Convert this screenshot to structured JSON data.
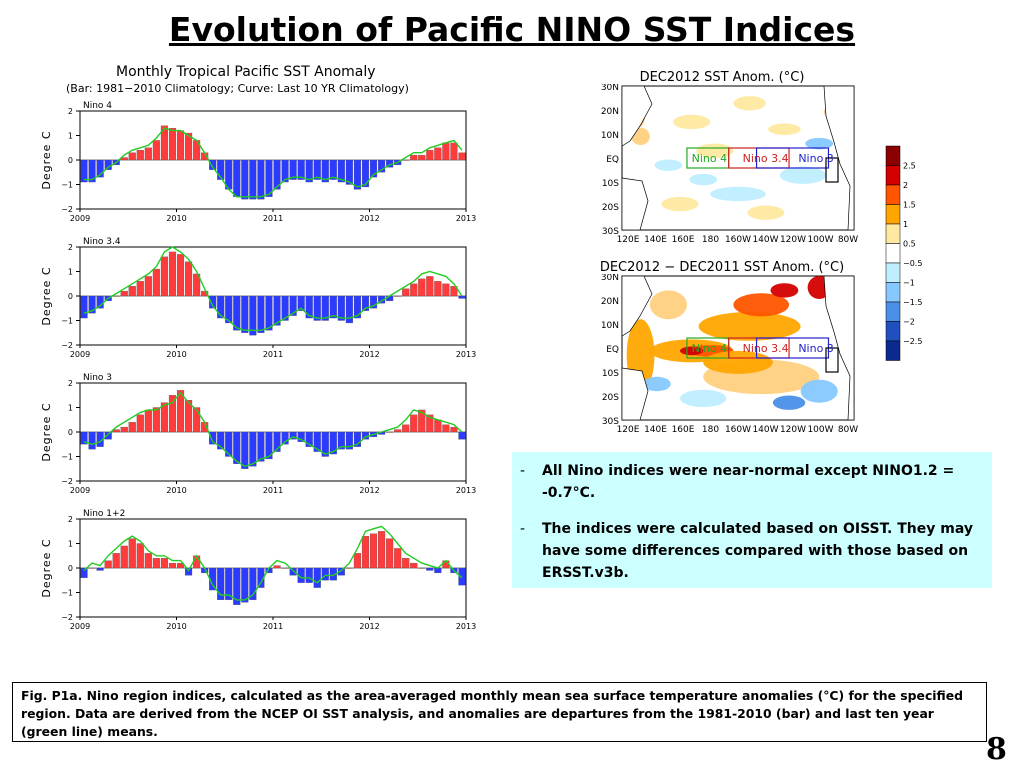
{
  "slide": {
    "title": "Evolution of Pacific NINO SST Indices",
    "page_number": "8",
    "caption": "Fig. P1a. Nino region indices, calculated as the area-averaged monthly mean sea surface temperature anomalies (°C) for the specified region. Data are derived from the NCEP OI SST analysis, and anomalies are departures from the 1981-2010 (bar) and last ten year (green line) means."
  },
  "bullets": [
    {
      "dash": "-",
      "text": "All Nino indices were near-normal except NINO1.2 = -0.7°C."
    },
    {
      "dash": "-",
      "text": "The indices were calculated based on OISST. They may have some differences compared with those based on ERSST.v3b."
    }
  ],
  "colors": {
    "positive_bar": "#ff3b3b",
    "negative_bar": "#2b3bff",
    "curve": "#22cc22"
  },
  "chart_data": [
    {
      "type": "bar",
      "title": "Monthly Tropical Pacific SST Anomaly",
      "subtitle": "(Bar: 1981−2010 Climatology; Curve: Last 10 YR Climatology)",
      "panel_label": "Nino 4",
      "ylabel": "Degree C",
      "ylim": [
        -2,
        2
      ],
      "yticks": [
        "2",
        "1",
        "0",
        "−1",
        "−2"
      ],
      "xticks": [
        "2009",
        "2010",
        "2011",
        "2012",
        "2013"
      ],
      "series": [
        {
          "values": [
            -0.9,
            -0.9,
            -0.7,
            -0.4,
            -0.2,
            0.1,
            0.3,
            0.4,
            0.5,
            0.8,
            1.4,
            1.3,
            1.2,
            1.1,
            0.8,
            0.3,
            -0.4,
            -0.8,
            -1.2,
            -1.5,
            -1.6,
            -1.6,
            -1.6,
            -1.5,
            -1.2,
            -0.9,
            -0.8,
            -0.8,
            -0.9,
            -0.8,
            -0.9,
            -0.8,
            -0.9,
            -1.0,
            -1.2,
            -1.1,
            -0.7,
            -0.5,
            -0.3,
            -0.2,
            0.0,
            0.2,
            0.2,
            0.4,
            0.5,
            0.7,
            0.7,
            0.3
          ]
        },
        {
          "values": [
            -0.8,
            -0.8,
            -0.6,
            -0.3,
            -0.1,
            0.2,
            0.4,
            0.5,
            0.6,
            0.9,
            1.3,
            1.2,
            1.2,
            1.0,
            0.8,
            0.3,
            -0.3,
            -0.7,
            -1.2,
            -1.5,
            -1.5,
            -1.5,
            -1.5,
            -1.4,
            -1.1,
            -0.8,
            -0.7,
            -0.7,
            -0.8,
            -0.7,
            -0.8,
            -0.7,
            -0.8,
            -0.9,
            -1.1,
            -1.0,
            -0.6,
            -0.4,
            -0.2,
            -0.1,
            0.1,
            0.3,
            0.3,
            0.5,
            0.6,
            0.7,
            0.8,
            0.4
          ]
        }
      ]
    },
    {
      "type": "bar",
      "panel_label": "Nino 3.4",
      "ylabel": "Degree C",
      "ylim": [
        -2,
        2
      ],
      "yticks": [
        "2",
        "1",
        "0",
        "−1",
        "−2"
      ],
      "xticks": [
        "2009",
        "2010",
        "2011",
        "2012",
        "2013"
      ],
      "series": [
        {
          "values": [
            -0.9,
            -0.7,
            -0.5,
            -0.2,
            0.0,
            0.2,
            0.4,
            0.6,
            0.8,
            1.1,
            1.6,
            1.8,
            1.7,
            1.4,
            0.9,
            0.2,
            -0.5,
            -0.9,
            -1.1,
            -1.4,
            -1.5,
            -1.6,
            -1.5,
            -1.4,
            -1.2,
            -1.0,
            -0.8,
            -0.6,
            -0.9,
            -1.0,
            -1.0,
            -0.9,
            -1.0,
            -1.1,
            -0.9,
            -0.6,
            -0.5,
            -0.3,
            -0.2,
            0.0,
            0.3,
            0.5,
            0.7,
            0.8,
            0.6,
            0.5,
            0.4,
            -0.1
          ]
        },
        {
          "values": [
            -0.7,
            -0.6,
            -0.4,
            -0.1,
            0.1,
            0.3,
            0.5,
            0.7,
            0.9,
            1.2,
            1.8,
            2.0,
            1.8,
            1.5,
            1.0,
            0.3,
            -0.4,
            -0.8,
            -1.0,
            -1.3,
            -1.4,
            -1.4,
            -1.4,
            -1.3,
            -1.1,
            -0.9,
            -0.7,
            -0.5,
            -0.8,
            -0.9,
            -0.9,
            -0.8,
            -0.9,
            -0.9,
            -0.8,
            -0.5,
            -0.4,
            -0.2,
            0.0,
            0.2,
            0.4,
            0.6,
            0.9,
            1.0,
            0.9,
            0.8,
            0.5,
            0.0
          ]
        }
      ]
    },
    {
      "type": "bar",
      "panel_label": "Nino 3",
      "ylabel": "Degree C",
      "ylim": [
        -2,
        2
      ],
      "yticks": [
        "2",
        "1",
        "0",
        "−1",
        "−2"
      ],
      "xticks": [
        "2009",
        "2010",
        "2011",
        "2012",
        "2013"
      ],
      "series": [
        {
          "values": [
            -0.5,
            -0.7,
            -0.6,
            -0.3,
            0.1,
            0.2,
            0.4,
            0.7,
            0.9,
            1.0,
            1.2,
            1.5,
            1.7,
            1.3,
            1.0,
            0.4,
            -0.5,
            -0.7,
            -1.0,
            -1.3,
            -1.5,
            -1.4,
            -1.2,
            -1.1,
            -0.8,
            -0.5,
            -0.3,
            -0.4,
            -0.6,
            -0.8,
            -1.0,
            -0.9,
            -0.7,
            -0.7,
            -0.6,
            -0.3,
            -0.2,
            -0.1,
            0.0,
            0.1,
            0.3,
            0.7,
            0.9,
            0.7,
            0.5,
            0.3,
            0.2,
            -0.3
          ]
        },
        {
          "values": [
            -0.4,
            -0.5,
            -0.4,
            -0.1,
            0.2,
            0.4,
            0.6,
            0.8,
            0.9,
            0.9,
            1.1,
            1.2,
            1.6,
            1.2,
            0.9,
            0.4,
            -0.4,
            -0.6,
            -0.9,
            -1.2,
            -1.4,
            -1.3,
            -1.1,
            -1.0,
            -0.7,
            -0.4,
            -0.2,
            -0.3,
            -0.5,
            -0.7,
            -0.9,
            -0.8,
            -0.6,
            -0.6,
            -0.5,
            -0.2,
            -0.1,
            0.0,
            0.1,
            0.2,
            0.5,
            0.9,
            0.8,
            0.6,
            0.5,
            0.4,
            0.3,
            0.0
          ]
        }
      ]
    },
    {
      "type": "bar",
      "panel_label": "Nino 1+2",
      "ylabel": "Degree C",
      "ylim": [
        -2,
        2
      ],
      "yticks": [
        "2",
        "1",
        "0",
        "−1",
        "−2"
      ],
      "xticks": [
        "2009",
        "2010",
        "2011",
        "2012",
        "2013"
      ],
      "series": [
        {
          "values": [
            -0.4,
            0.0,
            -0.1,
            0.3,
            0.6,
            0.9,
            1.2,
            1.0,
            0.6,
            0.4,
            0.4,
            0.2,
            0.2,
            -0.3,
            0.5,
            -0.2,
            -0.9,
            -1.3,
            -1.3,
            -1.5,
            -1.4,
            -1.3,
            -0.8,
            -0.2,
            0.1,
            0.0,
            -0.3,
            -0.6,
            -0.6,
            -0.8,
            -0.5,
            -0.5,
            -0.3,
            0.0,
            0.6,
            1.3,
            1.4,
            1.5,
            1.2,
            0.8,
            0.4,
            0.2,
            0.0,
            -0.1,
            -0.2,
            0.3,
            -0.2,
            -0.7
          ]
        },
        {
          "values": [
            -0.1,
            0.2,
            0.1,
            0.5,
            0.8,
            1.1,
            1.3,
            1.1,
            0.7,
            0.5,
            0.5,
            0.3,
            0.3,
            -0.1,
            0.5,
            0.0,
            -0.7,
            -1.1,
            -1.1,
            -1.3,
            -1.3,
            -1.1,
            -0.6,
            0.0,
            0.3,
            0.2,
            -0.1,
            -0.4,
            -0.4,
            -0.6,
            -0.3,
            -0.3,
            -0.1,
            0.2,
            0.8,
            1.5,
            1.6,
            1.7,
            1.4,
            1.0,
            0.6,
            0.4,
            0.2,
            0.1,
            0.0,
            0.3,
            -0.1,
            -0.4
          ]
        }
      ]
    },
    {
      "type": "heatmap",
      "title": "DEC2012 SST Anom. (°C)",
      "yticks": [
        "30N",
        "20N",
        "10N",
        "EQ",
        "10S",
        "20S",
        "30S"
      ],
      "xticks": [
        "120E",
        "140E",
        "160E",
        "180",
        "160W",
        "140W",
        "120W",
        "100W",
        "80W"
      ],
      "regions": [
        "Nino 4",
        "Nino 3.4",
        "Nino 3"
      ]
    },
    {
      "type": "heatmap",
      "title": "DEC2012 − DEC2011 SST Anom. (°C)",
      "yticks": [
        "30N",
        "20N",
        "10N",
        "EQ",
        "10S",
        "20S",
        "30S"
      ],
      "xticks": [
        "120E",
        "140E",
        "160E",
        "180",
        "160W",
        "140W",
        "120W",
        "100W",
        "80W"
      ],
      "regions": [
        "Nino 4",
        "Nino 3.4",
        "Nino 3"
      ]
    }
  ],
  "colorbar": {
    "labels": [
      "2.5",
      "2",
      "1.5",
      "1",
      "0.5",
      "−0.5",
      "−1",
      "−1.5",
      "−2",
      "−2.5"
    ],
    "colors": [
      "#8b0000",
      "#d40000",
      "#ff5500",
      "#ffa500",
      "#ffe9a0",
      "#ffffff",
      "#bfeeff",
      "#86c8ff",
      "#4a90e8",
      "#2050c0",
      "#0a2a90"
    ]
  }
}
